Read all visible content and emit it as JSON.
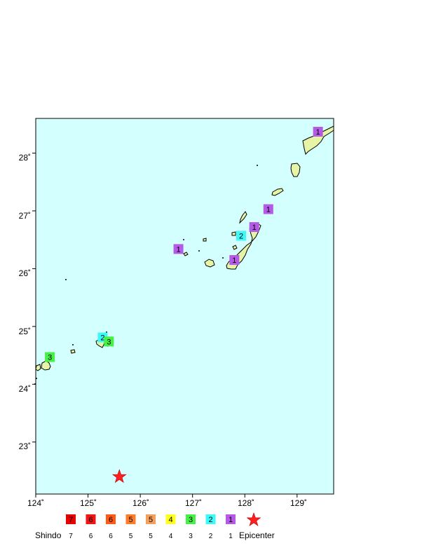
{
  "map": {
    "lon_range": [
      124.0,
      129.7
    ],
    "lat_range": [
      22.1,
      28.6
    ],
    "ocean_color": "#d4ffff",
    "land_color": "#e6f4a8",
    "x_ticks": [
      "124˚",
      "125˚",
      "126˚",
      "127˚",
      "128˚",
      "129˚"
    ],
    "y_ticks": [
      "28˚",
      "27˚",
      "26˚",
      "25˚",
      "24˚",
      "23˚"
    ],
    "observations": [
      {
        "lon": 129.4,
        "lat": 28.37,
        "shindo": "1"
      },
      {
        "lon": 128.45,
        "lat": 27.03,
        "shindo": "1"
      },
      {
        "lon": 128.18,
        "lat": 26.72,
        "shindo": "1"
      },
      {
        "lon": 127.93,
        "lat": 26.57,
        "shindo": "2"
      },
      {
        "lon": 126.73,
        "lat": 26.34,
        "shindo": "1"
      },
      {
        "lon": 127.8,
        "lat": 26.15,
        "shindo": "1"
      },
      {
        "lon": 125.28,
        "lat": 24.81,
        "shindo": "2"
      },
      {
        "lon": 125.4,
        "lat": 24.74,
        "shindo": "3"
      },
      {
        "lon": 124.27,
        "lat": 24.47,
        "shindo": "3"
      }
    ],
    "epicenter": {
      "lon": 125.6,
      "lat": 22.4,
      "color": "#ff2020"
    }
  },
  "legend": {
    "title": "Shindo",
    "epicenter_label": "Epicenter",
    "items": [
      {
        "box": "7",
        "label": "7",
        "color": "#e60000",
        "text_color": "#ffffff"
      },
      {
        "box": "6",
        "label": "6",
        "color": "#f01414",
        "text_color": "#ffffff"
      },
      {
        "box": "6",
        "label": "6",
        "color": "#ff5a14",
        "text_color": "#ffffff"
      },
      {
        "box": "5",
        "label": "5",
        "color": "#ff7d28",
        "text_color": "#ffffff"
      },
      {
        "box": "5",
        "label": "5",
        "color": "#f5a05a",
        "text_color": "#000000"
      },
      {
        "box": "4",
        "label": "4",
        "color": "#ffff1e",
        "text_color": "#000000"
      },
      {
        "box": "3",
        "label": "3",
        "color": "#46f046",
        "text_color": "#000000"
      },
      {
        "box": "2",
        "label": "2",
        "color": "#3cfafa",
        "text_color": "#000000"
      },
      {
        "box": "1",
        "label": "1",
        "color": "#b45ae6",
        "text_color": "#000000"
      }
    ]
  }
}
